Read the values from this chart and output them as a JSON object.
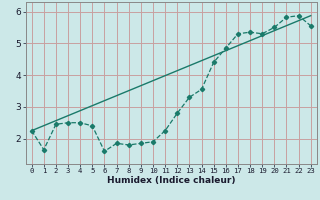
{
  "xlabel": "Humidex (Indice chaleur)",
  "background_color": "#cce8e8",
  "grid_color": "#c8a0a0",
  "line_color": "#1a7a6a",
  "xlim": [
    -0.5,
    23.5
  ],
  "ylim": [
    1.2,
    6.3
  ],
  "xticks": [
    0,
    1,
    2,
    3,
    4,
    5,
    6,
    7,
    8,
    9,
    10,
    11,
    12,
    13,
    14,
    15,
    16,
    17,
    18,
    19,
    20,
    21,
    22,
    23
  ],
  "yticks": [
    2,
    3,
    4,
    5,
    6
  ],
  "curve_x": [
    0,
    1,
    2,
    3,
    4,
    5,
    6,
    7,
    8,
    9,
    10,
    11,
    12,
    13,
    14,
    15,
    16,
    17,
    18,
    19,
    20,
    21,
    22,
    23
  ],
  "curve_y": [
    2.25,
    1.65,
    2.45,
    2.5,
    2.5,
    2.4,
    1.6,
    1.85,
    1.8,
    1.85,
    1.9,
    2.25,
    2.8,
    3.3,
    3.55,
    4.4,
    4.85,
    5.3,
    5.35,
    5.3,
    5.5,
    5.82,
    5.87,
    5.55
  ],
  "trend_x": [
    0,
    23
  ],
  "trend_y": [
    2.25,
    5.87
  ]
}
